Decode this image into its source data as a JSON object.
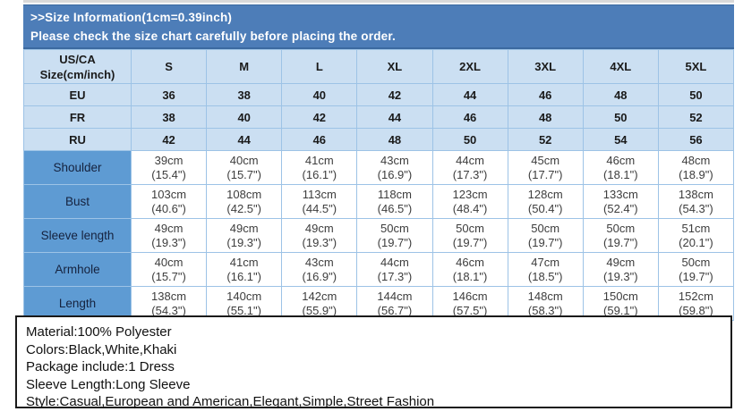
{
  "banner": {
    "line1": ">>Size Information(1cm=0.39inch)",
    "line2": "Please check the size chart carefully before placing the order."
  },
  "table": {
    "corner_header": "US/CA\nSize(cm/inch)",
    "size_headers": [
      "S",
      "M",
      "L",
      "XL",
      "2XL",
      "3XL",
      "4XL",
      "5XL"
    ],
    "region_rows": [
      {
        "label": "EU",
        "values": [
          "36",
          "38",
          "40",
          "42",
          "44",
          "46",
          "48",
          "50"
        ]
      },
      {
        "label": "FR",
        "values": [
          "38",
          "40",
          "42",
          "44",
          "46",
          "48",
          "50",
          "52"
        ]
      },
      {
        "label": "RU",
        "values": [
          "42",
          "44",
          "46",
          "48",
          "50",
          "52",
          "54",
          "56"
        ]
      }
    ],
    "measurement_rows": [
      {
        "label": "Shoulder",
        "values": [
          "39cm\n(15.4\")",
          "40cm\n(15.7\")",
          "41cm\n(16.1\")",
          "43cm\n(16.9\")",
          "44cm\n(17.3\")",
          "45cm\n(17.7\")",
          "46cm\n(18.1\")",
          "48cm\n(18.9\")"
        ]
      },
      {
        "label": "Bust",
        "values": [
          "103cm\n(40.6\")",
          "108cm\n(42.5\")",
          "113cm\n(44.5\")",
          "118cm\n(46.5\")",
          "123cm\n(48.4\")",
          "128cm\n(50.4\")",
          "133cm\n(52.4\")",
          "138cm\n(54.3\")"
        ]
      },
      {
        "label": "Sleeve length",
        "values": [
          "49cm\n(19.3\")",
          "49cm\n(19.3\")",
          "49cm\n(19.3\")",
          "50cm\n(19.7\")",
          "50cm\n(19.7\")",
          "50cm\n(19.7\")",
          "50cm\n(19.7\")",
          "51cm\n(20.1\")"
        ]
      },
      {
        "label": "Armhole",
        "values": [
          "40cm\n(15.7\")",
          "41cm\n(16.1\")",
          "43cm\n(16.9\")",
          "44cm\n(17.3\")",
          "46cm\n(18.1\")",
          "47cm\n(18.5\")",
          "49cm\n(19.3\")",
          "50cm\n(19.7\")"
        ]
      },
      {
        "label": "Length",
        "values": [
          "138cm\n(54.3\")",
          "140cm\n(55.1\")",
          "142cm\n(55.9\")",
          "144cm\n(56.7\")",
          "146cm\n(57.5\")",
          "148cm\n(58.3\")",
          "150cm\n(59.1\")",
          "152cm\n(59.8\")"
        ]
      }
    ]
  },
  "product_info": {
    "lines": [
      "Material:100% Polyester",
      "Colors:Black,White,Khaki",
      "Package include:1 Dress",
      "Sleeve Length:Long Sleeve",
      "Style:Casual,European and American,Elegant,Simple,Street Fashion"
    ]
  },
  "colors": {
    "banner_blue": "#4d7db8",
    "light_cell_blue": "#cbdff2",
    "label_cell_blue": "#5e9bd3",
    "grid_border_blue": "#9dc3e6",
    "info_box_border": "#1a1a1a"
  }
}
